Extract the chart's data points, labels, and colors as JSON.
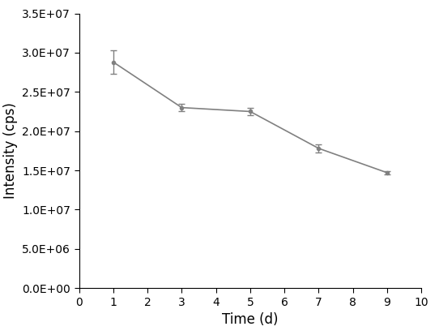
{
  "x": [
    1,
    3,
    5,
    7,
    9
  ],
  "y": [
    28800000.0,
    23000000.0,
    22500000.0,
    17800000.0,
    14700000.0
  ],
  "yerr": [
    1500000.0,
    500000.0,
    500000.0,
    500000.0,
    200000.0
  ],
  "line_color": "#808080",
  "marker": "o",
  "marker_size": 3,
  "marker_color": "#808080",
  "line_width": 1.2,
  "capsize": 3,
  "capthick": 1.0,
  "elinewidth": 1.0,
  "xlabel": "Time (d)",
  "ylabel": "Intensity (cps)",
  "xlim": [
    0,
    10
  ],
  "ylim": [
    0,
    35000000.0
  ],
  "xticks": [
    0,
    1,
    2,
    3,
    4,
    5,
    6,
    7,
    8,
    9,
    10
  ],
  "ytick_step": 5000000.0,
  "background_color": "#ffffff",
  "tick_label_fontsize": 10,
  "axis_label_fontsize": 12,
  "spine_color": "#000000"
}
